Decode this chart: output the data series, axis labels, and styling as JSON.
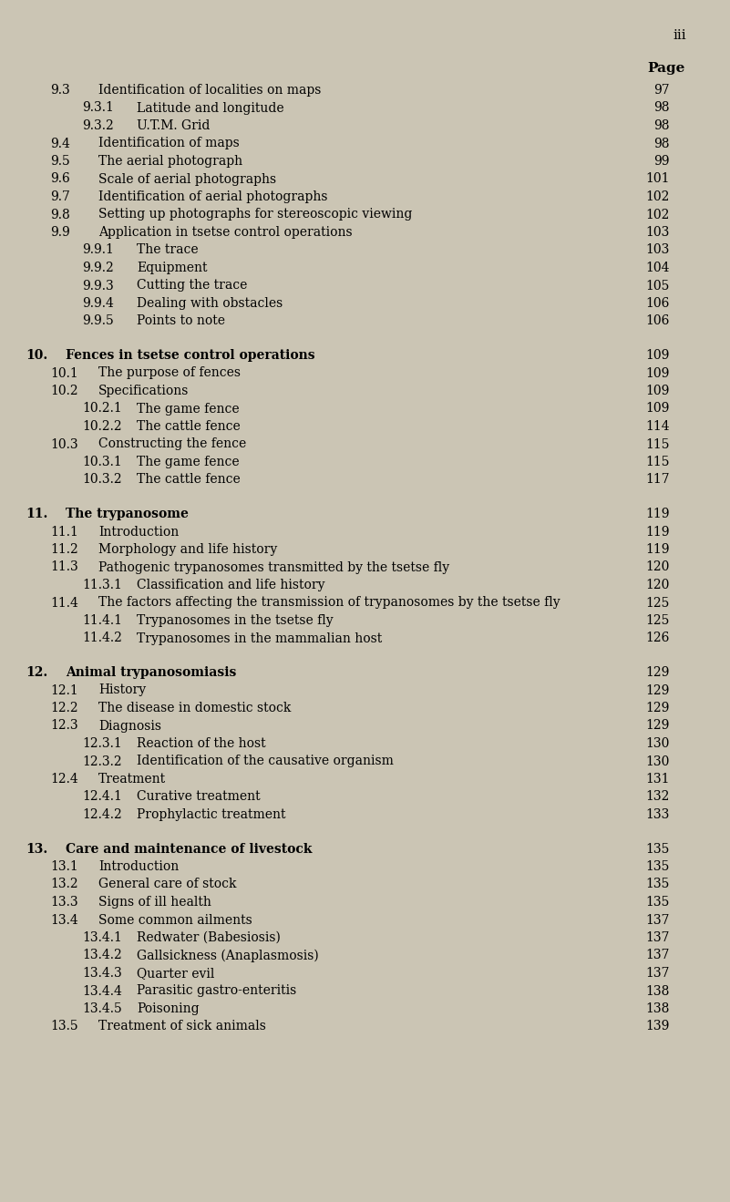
{
  "bg_color": "#cbc5b4",
  "page_marker": "iii",
  "page_header": "Page",
  "entries": [
    {
      "level": 1,
      "number": "9.3",
      "text": "Identification of localities on maps",
      "page": "97"
    },
    {
      "level": 2,
      "number": "9.3.1",
      "text": "Latitude and longitude",
      "page": "98"
    },
    {
      "level": 2,
      "number": "9.3.2",
      "text": "U.T.M. Grid",
      "page": "98"
    },
    {
      "level": 1,
      "number": "9.4",
      "text": "Identification of maps",
      "page": "98"
    },
    {
      "level": 1,
      "number": "9.5",
      "text": "The aerial photograph",
      "page": "99"
    },
    {
      "level": 1,
      "number": "9.6",
      "text": "Scale of aerial photographs",
      "page": "101"
    },
    {
      "level": 1,
      "number": "9.7",
      "text": "Identification of aerial photographs",
      "page": "102"
    },
    {
      "level": 1,
      "number": "9.8",
      "text": "Setting up photographs for stereoscopic viewing",
      "page": "102"
    },
    {
      "level": 1,
      "number": "9.9",
      "text": "Application in tsetse control operations",
      "page": "103"
    },
    {
      "level": 2,
      "number": "9.9.1",
      "text": "The trace",
      "page": "103"
    },
    {
      "level": 2,
      "number": "9.9.2",
      "text": "Equipment",
      "page": "104"
    },
    {
      "level": 2,
      "number": "9.9.3",
      "text": "Cutting the trace",
      "page": "105"
    },
    {
      "level": 2,
      "number": "9.9.4",
      "text": "Dealing with obstacles",
      "page": "106"
    },
    {
      "level": 2,
      "number": "9.9.5",
      "text": "Points to note",
      "page": "106"
    },
    {
      "level": 0,
      "number": "10.",
      "text": "Fences in tsetse control operations",
      "page": "109",
      "bold": true
    },
    {
      "level": 1,
      "number": "10.1",
      "text": "The purpose of fences",
      "page": "109"
    },
    {
      "level": 1,
      "number": "10.2",
      "text": "Specifications",
      "page": "109"
    },
    {
      "level": 2,
      "number": "10.2.1",
      "text": "The game fence",
      "page": "109"
    },
    {
      "level": 2,
      "number": "10.2.2",
      "text": "The cattle fence",
      "page": "114"
    },
    {
      "level": 1,
      "number": "10.3",
      "text": "Constructing the fence",
      "page": "115"
    },
    {
      "level": 2,
      "number": "10.3.1",
      "text": "The game fence",
      "page": "115"
    },
    {
      "level": 2,
      "number": "10.3.2",
      "text": "The cattle fence",
      "page": "117"
    },
    {
      "level": 0,
      "number": "11.",
      "text": "The trypanosome",
      "page": "119",
      "bold": true
    },
    {
      "level": 1,
      "number": "11.1",
      "text": "Introduction",
      "page": "119"
    },
    {
      "level": 1,
      "number": "11.2",
      "text": "Morphology and life history",
      "page": "119"
    },
    {
      "level": 1,
      "number": "11.3",
      "text": "Pathogenic trypanosomes transmitted by the tsetse fly",
      "page": "120"
    },
    {
      "level": 2,
      "number": "11.3.1",
      "text": "Classification and life history",
      "page": "120"
    },
    {
      "level": 1,
      "number": "11.4",
      "text": "The factors affecting the transmission of trypanosomes by the tsetse fly",
      "page": "125"
    },
    {
      "level": 2,
      "number": "11.4.1",
      "text": "Trypanosomes in the tsetse fly",
      "page": "125"
    },
    {
      "level": 2,
      "number": "11.4.2",
      "text": "Trypanosomes in the mammalian host",
      "page": "126"
    },
    {
      "level": 0,
      "number": "12.",
      "text": "Animal trypanosomiasis",
      "page": "129",
      "bold": true
    },
    {
      "level": 1,
      "number": "12.1",
      "text": "History",
      "page": "129"
    },
    {
      "level": 1,
      "number": "12.2",
      "text": "The disease in domestic stock",
      "page": "129"
    },
    {
      "level": 1,
      "number": "12.3",
      "text": "Diagnosis",
      "page": "129"
    },
    {
      "level": 2,
      "number": "12.3.1",
      "text": "Reaction of the host",
      "page": "130"
    },
    {
      "level": 2,
      "number": "12.3.2",
      "text": "Identification of the causative organism",
      "page": "130"
    },
    {
      "level": 1,
      "number": "12.4",
      "text": "Treatment",
      "page": "131"
    },
    {
      "level": 2,
      "number": "12.4.1",
      "text": "Curative treatment",
      "page": "132"
    },
    {
      "level": 2,
      "number": "12.4.2",
      "text": "Prophylactic treatment",
      "page": "133"
    },
    {
      "level": 0,
      "number": "13.",
      "text": "Care and maintenance of livestock",
      "page": "135",
      "bold": true
    },
    {
      "level": 1,
      "number": "13.1",
      "text": "Introduction",
      "page": "135"
    },
    {
      "level": 1,
      "number": "13.2",
      "text": "General care of stock",
      "page": "135"
    },
    {
      "level": 1,
      "number": "13.3",
      "text": "Signs of ill health",
      "page": "135"
    },
    {
      "level": 1,
      "number": "13.4",
      "text": "Some common ailments",
      "page": "137"
    },
    {
      "level": 2,
      "number": "13.4.1",
      "text": "Redwater (Babesiosis)",
      "page": "137"
    },
    {
      "level": 2,
      "number": "13.4.2",
      "text": "Gallsickness (Anaplasmosis)",
      "page": "137"
    },
    {
      "level": 2,
      "number": "13.4.3",
      "text": "Quarter evil",
      "page": "137"
    },
    {
      "level": 2,
      "number": "13.4.4",
      "text": "Parasitic gastro-enteritis",
      "page": "138"
    },
    {
      "level": 2,
      "number": "13.4.5",
      "text": "Poisoning",
      "page": "138"
    },
    {
      "level": 1,
      "number": "13.5",
      "text": "Treatment of sick animals",
      "page": "139"
    }
  ]
}
